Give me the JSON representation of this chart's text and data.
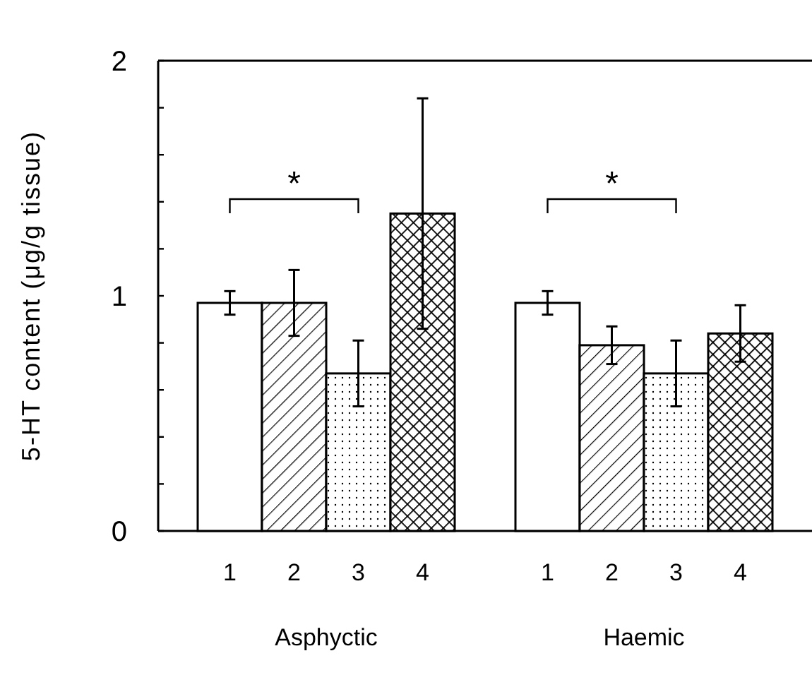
{
  "chart_data": {
    "type": "bar",
    "ylabel": "5-HT content (μg/g tissue)",
    "categories": [
      "Asphyctic",
      "Haemic"
    ],
    "series": [
      {
        "name": "1",
        "color": "#ffffff",
        "values": [
          0.97,
          0.97
        ],
        "errors": [
          0.05,
          0.05
        ]
      },
      {
        "name": "2",
        "color": "#000000",
        "values": [
          0.97,
          0.79
        ],
        "errors": [
          0.14,
          0.08
        ]
      },
      {
        "name": "3",
        "color": "#000000",
        "values": [
          0.67,
          0.67
        ],
        "errors": [
          0.14,
          0.14
        ]
      },
      {
        "name": "4",
        "color": "#000000",
        "values": [
          1.35,
          0.84
        ],
        "errors": [
          0.49,
          0.12
        ]
      }
    ],
    "ylim": [
      0,
      2
    ],
    "yticks": [
      0,
      {
        "value": 0.2,
        "label": null
      },
      {
        "value": 0.4,
        "label": null
      },
      {
        "value": 0.6,
        "label": null
      },
      {
        "value": 0.8,
        "label": null
      },
      1,
      {
        "value": 1.2,
        "label": null
      },
      {
        "value": 1.4,
        "label": null
      },
      {
        "value": 1.6,
        "label": null
      },
      {
        "value": 1.8,
        "label": null
      },
      2
    ],
    "annotations": [
      "*",
      "*"
    ],
    "grid": false
  }
}
